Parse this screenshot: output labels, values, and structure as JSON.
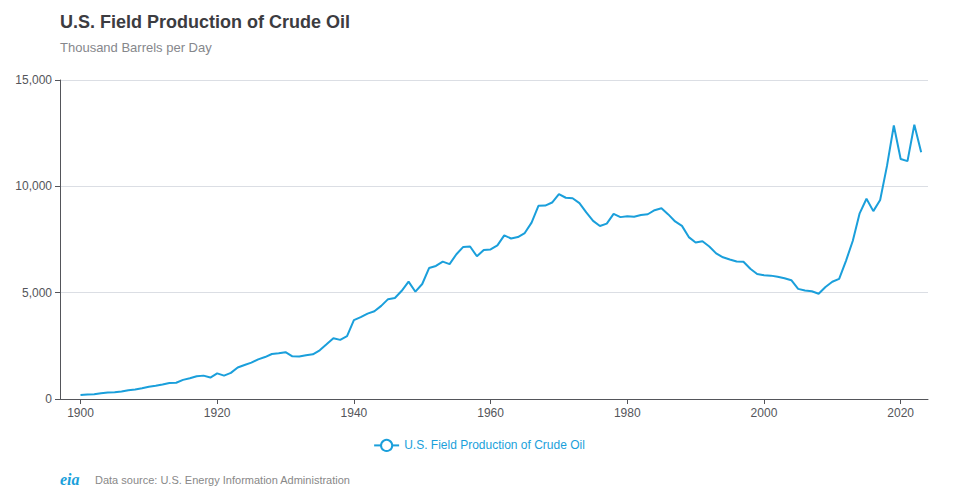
{
  "chart_data": {
    "type": "line",
    "title": "U.S. Field Production of Crude Oil",
    "subtitle": "Thousand Barrels per Day",
    "annotations": [
      "eia",
      "Data source: U.S. Energy Information Administration"
    ],
    "x": [
      1900,
      1901,
      1902,
      1903,
      1904,
      1905,
      1906,
      1907,
      1908,
      1909,
      1910,
      1911,
      1912,
      1913,
      1914,
      1915,
      1916,
      1917,
      1918,
      1919,
      1920,
      1921,
      1922,
      1923,
      1924,
      1925,
      1926,
      1927,
      1928,
      1929,
      1930,
      1931,
      1932,
      1933,
      1934,
      1935,
      1936,
      1937,
      1938,
      1939,
      1940,
      1941,
      1942,
      1943,
      1944,
      1945,
      1946,
      1947,
      1948,
      1949,
      1950,
      1951,
      1952,
      1953,
      1954,
      1955,
      1956,
      1957,
      1958,
      1959,
      1960,
      1961,
      1962,
      1963,
      1964,
      1965,
      1966,
      1967,
      1968,
      1969,
      1970,
      1971,
      1972,
      1973,
      1974,
      1975,
      1976,
      1977,
      1978,
      1979,
      1980,
      1981,
      1982,
      1983,
      1984,
      1985,
      1986,
      1987,
      1988,
      1989,
      1990,
      1991,
      1992,
      1993,
      1994,
      1995,
      1996,
      1997,
      1998,
      1999,
      2000,
      2001,
      2002,
      2003,
      2004,
      2005,
      2006,
      2007,
      2008,
      2009,
      2010,
      2011,
      2012,
      2013,
      2014,
      2015,
      2016,
      2017,
      2018,
      2019,
      2020,
      2021,
      2022,
      2023
    ],
    "series": [
      {
        "name": "U.S. Field Production of Crude Oil",
        "color": "#1a9fdb",
        "values": [
          183,
          209,
          225,
          270,
          301,
          321,
          354,
          416,
          449,
          506,
          576,
          622,
          681,
          751,
          765,
          900,
          973,
          1068,
          1099,
          1007,
          1207,
          1100,
          1228,
          1481,
          1596,
          1710,
          1863,
          1972,
          2117,
          2149,
          2202,
          2008,
          1994,
          2054,
          2102,
          2291,
          2571,
          2859,
          2780,
          2952,
          3707,
          3847,
          4014,
          4125,
          4379,
          4695,
          4749,
          5088,
          5520,
          5046,
          5407,
          6158,
          6256,
          6458,
          6342,
          6806,
          7151,
          7170,
          6710,
          7005,
          7035,
          7224,
          7696,
          7547,
          7614,
          7804,
          8295,
          9083,
          9096,
          9239,
          9637,
          9463,
          9441,
          9208,
          8774,
          8375,
          8132,
          8245,
          8707,
          8552,
          8597,
          8572,
          8649,
          8688,
          8879,
          8971,
          8680,
          8349,
          8140,
          7613,
          7355,
          7417,
          7172,
          6847,
          6662,
          6560,
          6465,
          6452,
          6122,
          5881,
          5822,
          5801,
          5746,
          5681,
          5587,
          5178,
          5102,
          5064,
          4950,
          5268,
          5512,
          5645,
          6497,
          7441,
          8731,
          9415,
          8834,
          9355,
          10960,
          12860,
          11283,
          11184,
          12895,
          11600
        ]
      }
    ],
    "xlim": [
      1897,
      2024
    ],
    "xticks": [
      1900,
      1920,
      1940,
      1960,
      1980,
      2000,
      2020
    ],
    "ylim": [
      0,
      15000
    ],
    "yticks": [
      0,
      {
        "value": 5000,
        "label": "5,000"
      },
      {
        "value": 10000,
        "label": "10,000"
      },
      {
        "value": 15000,
        "label": "15,000"
      }
    ],
    "grid": true,
    "legend": "bottom"
  }
}
